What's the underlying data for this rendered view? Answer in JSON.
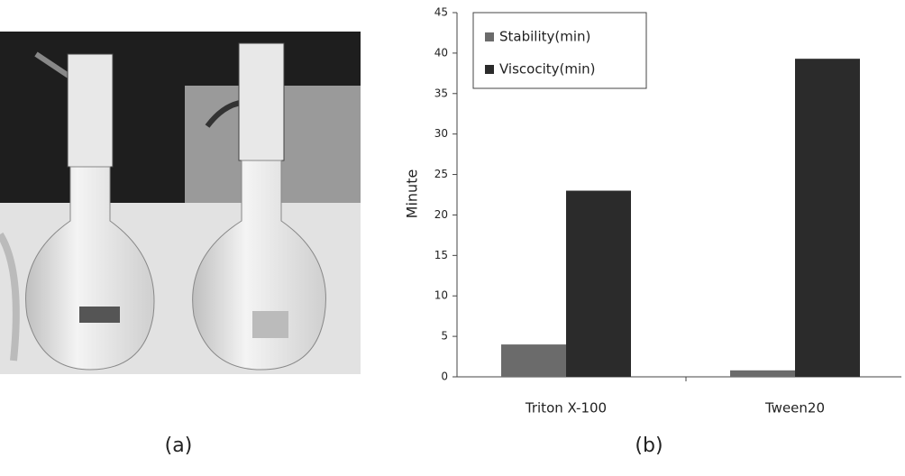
{
  "captions": [
    "(a)",
    "(b)"
  ],
  "chart_data": {
    "type": "bar",
    "ylabel": "Minute",
    "categories": [
      "Triton X-100",
      "Tween20"
    ],
    "series": [
      {
        "name": "Stability(min)",
        "color": "#6b6b6b",
        "values": [
          4,
          0.8
        ]
      },
      {
        "name": "Viscocity(min)",
        "color": "#2b2b2b",
        "values": [
          23,
          39.3
        ]
      }
    ],
    "ylim": [
      0,
      45
    ],
    "yticks": [
      0,
      5,
      10,
      15,
      20,
      25,
      30,
      35,
      40,
      45
    ],
    "grid": false,
    "legend": "top-left"
  }
}
